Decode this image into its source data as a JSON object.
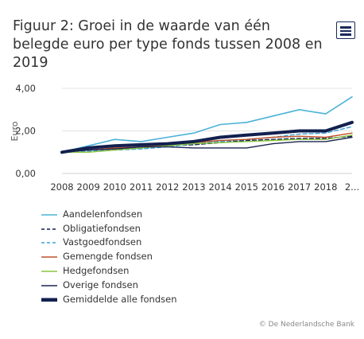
{
  "page": {
    "title": "Figuur 2: Groei in de waarde van één belegde euro per type fonds tussen 2008 en 2019",
    "credit": "© De Nederlandsche Bank",
    "menu_icon": "hamburger-menu-icon"
  },
  "chart_data": {
    "type": "line",
    "title": "Figuur 2: Groei in de waarde van één belegde euro per type fonds tussen 2008 en 2019",
    "xlabel": "",
    "ylabel": "Euro",
    "categories": [
      "2008",
      "2009",
      "2010",
      "2011",
      "2012",
      "2013",
      "2014",
      "2015",
      "2016",
      "2017",
      "2018",
      "2..."
    ],
    "ylim": [
      0,
      4
    ],
    "yticks": [
      "0,00",
      "2,00",
      "4,00"
    ],
    "grid": true,
    "legend_position": "bottom-left",
    "series": [
      {
        "name": "Aandelenfondsen",
        "color": "#4bb3d8",
        "dash": "solid",
        "width": 1.6,
        "values": [
          1.0,
          1.3,
          1.6,
          1.5,
          1.7,
          1.9,
          2.3,
          2.4,
          2.7,
          3.0,
          2.8,
          3.6
        ]
      },
      {
        "name": "Obligatiefondsen",
        "color": "#0e1f4d",
        "dash": "dashed",
        "width": 1.4,
        "values": [
          1.0,
          1.1,
          1.15,
          1.2,
          1.3,
          1.35,
          1.45,
          1.55,
          1.6,
          1.65,
          1.65,
          1.75
        ]
      },
      {
        "name": "Vastgoedfondsen",
        "color": "#3aa0d8",
        "dash": "dashed",
        "width": 1.4,
        "values": [
          1.0,
          1.05,
          1.1,
          1.15,
          1.25,
          1.4,
          1.5,
          1.6,
          1.7,
          1.85,
          1.9,
          2.2
        ]
      },
      {
        "name": "Gemengde fondsen",
        "color": "#c0502a",
        "dash": "solid",
        "width": 1.4,
        "values": [
          1.0,
          1.1,
          1.2,
          1.25,
          1.35,
          1.45,
          1.55,
          1.6,
          1.7,
          1.75,
          1.7,
          1.9
        ]
      },
      {
        "name": "Hedgefondsen",
        "color": "#8cc63e",
        "dash": "solid",
        "width": 1.4,
        "values": [
          1.0,
          1.0,
          1.1,
          1.2,
          1.3,
          1.4,
          1.45,
          1.5,
          1.55,
          1.6,
          1.6,
          1.8
        ]
      },
      {
        "name": "Overige fondsen",
        "color": "#1b2550",
        "dash": "solid",
        "width": 1.4,
        "values": [
          1.0,
          1.1,
          1.15,
          1.25,
          1.25,
          1.2,
          1.2,
          1.2,
          1.4,
          1.5,
          1.5,
          1.7
        ]
      },
      {
        "name": "Gemiddelde alle fondsen",
        "color": "#12204f",
        "dash": "solid",
        "width": 4,
        "values": [
          1.0,
          1.2,
          1.3,
          1.35,
          1.4,
          1.5,
          1.7,
          1.8,
          1.9,
          2.0,
          2.0,
          2.4
        ]
      }
    ]
  }
}
